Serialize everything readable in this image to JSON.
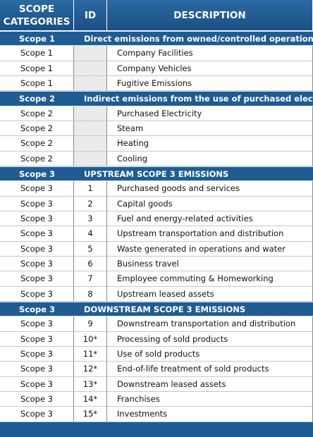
{
  "header": {
    "columns": [
      "SCOPE CATEGORIES",
      "ID",
      "DESCRIPTION"
    ]
  },
  "sections": [
    {
      "scope": "Scope 1",
      "title": "Direct emissions from owned/controlled operations",
      "rows": [
        {
          "scope": "Scope 1",
          "description": "Company Facilities"
        },
        {
          "scope": "Scope 1",
          "description": "Company Vehicles"
        },
        {
          "scope": "Scope 1",
          "description": "Fugitive Emissions"
        }
      ]
    },
    {
      "scope": "Scope 2",
      "title": "Indirect emissions from the use of purchased electricity",
      "rows": [
        {
          "scope": "Scope 2",
          "description": "Purchased Electricity"
        },
        {
          "scope": "Scope 2",
          "description": "Steam"
        },
        {
          "scope": "Scope 2",
          "description": "Heating"
        },
        {
          "scope": "Scope 2",
          "description": "Cooling"
        }
      ]
    },
    {
      "scope": "Scope 3",
      "title": "UPSTREAM SCOPE 3 EMISSIONS",
      "rows": [
        {
          "scope": "Scope 3",
          "id": "1",
          "description": "Purchased goods and services"
        },
        {
          "scope": "Scope 3",
          "id": "2",
          "description": "Capital goods"
        },
        {
          "scope": "Scope 3",
          "id": "3",
          "description": "Fuel and energy-related activities"
        },
        {
          "scope": "Scope 3",
          "id": "4",
          "description": "Upstream transportation and distribution"
        },
        {
          "scope": "Scope 3",
          "id": "5",
          "description": "Waste generated in operations and water"
        },
        {
          "scope": "Scope 3",
          "id": "6",
          "description": "Business travel"
        },
        {
          "scope": "Scope 3",
          "id": "7",
          "description": "Employee commuting & Homeworking"
        },
        {
          "scope": "Scope 3",
          "id": "8",
          "description": "Upstream leased assets"
        }
      ]
    },
    {
      "scope": "Scope 3",
      "title": "DOWNSTREAM SCOPE 3 EMISSIONS",
      "rows": [
        {
          "scope": "Scope 3",
          "id": "9",
          "description": "Downstream transportation and distribution"
        },
        {
          "scope": "Scope 3",
          "id": "10*",
          "description": "Processing of sold products"
        },
        {
          "scope": "Scope 3",
          "id": "11*",
          "description": "Use of sold products"
        },
        {
          "scope": "Scope 3",
          "id": "12*",
          "description": "End-of-life treatment of sold products"
        },
        {
          "scope": "Scope 3",
          "id": "13*",
          "description": "Downstream leased assets"
        },
        {
          "scope": "Scope 3",
          "id": "14*",
          "description": "Franchises"
        },
        {
          "scope": "Scope 3",
          "id": "15*",
          "description": "Investments"
        }
      ]
    }
  ]
}
